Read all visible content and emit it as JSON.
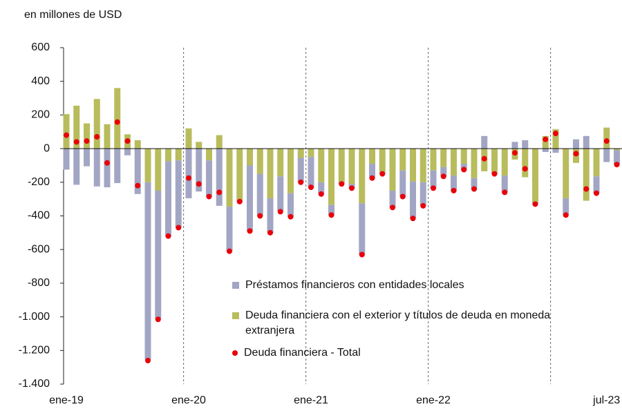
{
  "chart_data": {
    "type": "bar",
    "stacked": true,
    "subtitle": "en millones de USD",
    "categories": [
      "ene-19",
      null,
      null,
      null,
      null,
      null,
      null,
      null,
      null,
      null,
      null,
      null,
      "ene-20",
      null,
      null,
      null,
      null,
      null,
      null,
      null,
      null,
      null,
      null,
      null,
      "ene-21",
      null,
      null,
      null,
      null,
      null,
      null,
      null,
      null,
      null,
      null,
      null,
      "ene-22",
      null,
      null,
      null,
      null,
      null,
      null,
      null,
      null,
      null,
      null,
      null,
      null,
      null,
      null,
      null,
      null,
      "jul-23",
      null
    ],
    "year_lines": [
      12,
      24,
      36,
      48
    ],
    "ylim": [
      -1400,
      600
    ],
    "yticks": [
      600,
      400,
      200,
      0,
      -200,
      -400,
      -600,
      -800,
      {
        "value": -1000,
        "label": "-1.000"
      },
      {
        "value": -1200,
        "label": "-1.200"
      },
      {
        "value": -1400,
        "label": "-1.400"
      }
    ],
    "series": [
      {
        "name": "Préstamos financieros con entidades locales",
        "color": "#a2a6c4",
        "kind": "bar",
        "values": [
          -125,
          -215,
          -105,
          -225,
          -230,
          -205,
          -40,
          -270,
          -1055,
          -765,
          -445,
          -400,
          -295,
          -255,
          -215,
          -340,
          -265,
          -10,
          -390,
          -250,
          -205,
          -205,
          -140,
          -145,
          -180,
          -70,
          -60,
          -10,
          -25,
          -305,
          -85,
          -10,
          -100,
          -155,
          -220,
          -140,
          -105,
          -55,
          -90,
          -35,
          -65,
          75,
          -10,
          -100,
          40,
          50,
          -10,
          -20,
          -25,
          -100,
          55,
          75,
          -100,
          -80,
          -85
        ]
      },
      {
        "name": "Deuda financiera con el exterior y títulos de deuda en moneda extranjera",
        "color": "#b8bc5c",
        "kind": "bar",
        "values": [
          205,
          255,
          150,
          295,
          145,
          360,
          85,
          50,
          -200,
          -250,
          -75,
          -70,
          120,
          40,
          -70,
          80,
          -345,
          -305,
          -100,
          -150,
          -295,
          -165,
          -265,
          -55,
          -50,
          -200,
          -335,
          -200,
          -210,
          -325,
          -90,
          -140,
          -250,
          -130,
          -195,
          -200,
          -130,
          -110,
          -160,
          -90,
          -175,
          -135,
          -140,
          -160,
          -65,
          -170,
          -320,
          75,
          115,
          -295,
          -85,
          -310,
          -165,
          125,
          -10
        ]
      },
      {
        "name": "Deuda financiera - Total",
        "color": "#e8000b",
        "kind": "dot",
        "values": [
          80,
          40,
          45,
          70,
          -85,
          158,
          45,
          -220,
          -1260,
          -1015,
          -520,
          -470,
          -175,
          -210,
          -285,
          -260,
          -610,
          -315,
          -490,
          -400,
          -500,
          -375,
          -405,
          -200,
          -230,
          -270,
          -395,
          -210,
          -235,
          -630,
          -175,
          -150,
          -350,
          -285,
          -415,
          -340,
          -235,
          -165,
          -250,
          -125,
          -240,
          -60,
          -150,
          -260,
          -25,
          -120,
          -330,
          55,
          90,
          -395,
          -30,
          -240,
          -265,
          45,
          -95
        ]
      }
    ]
  }
}
